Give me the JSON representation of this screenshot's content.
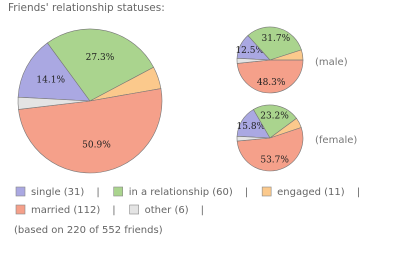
{
  "title": "Friends' relationship statuses:",
  "colors": [
    "#aaa8e2",
    "#aad48e",
    "#fbc98c",
    "#f5a08a",
    "#e4e4e4"
  ],
  "legend": [
    "single (31)",
    "in a relationship (60)",
    "engaged (11)",
    "married (112)",
    "other (6)"
  ],
  "separator": "|",
  "footnote": "(based on 220 of 552 friends)",
  "chart_data": [
    {
      "type": "pie",
      "values": [
        14.1,
        27.3,
        5.0,
        50.9,
        2.7
      ],
      "value_labels": [
        "14.1%",
        "27.3%",
        null,
        "50.9%",
        null
      ]
    },
    {
      "type": "pie",
      "label": "(male)",
      "values": [
        12.5,
        31.7,
        5.0,
        48.3,
        2.5
      ],
      "value_labels": [
        "12.5%",
        "31.7%",
        null,
        "48.3%",
        null
      ]
    },
    {
      "type": "pie",
      "label": "(female)",
      "values": [
        15.8,
        23.2,
        5.0,
        53.7,
        2.3
      ],
      "value_labels": [
        "15.8%",
        "23.2%",
        null,
        "53.7%",
        null
      ]
    }
  ]
}
